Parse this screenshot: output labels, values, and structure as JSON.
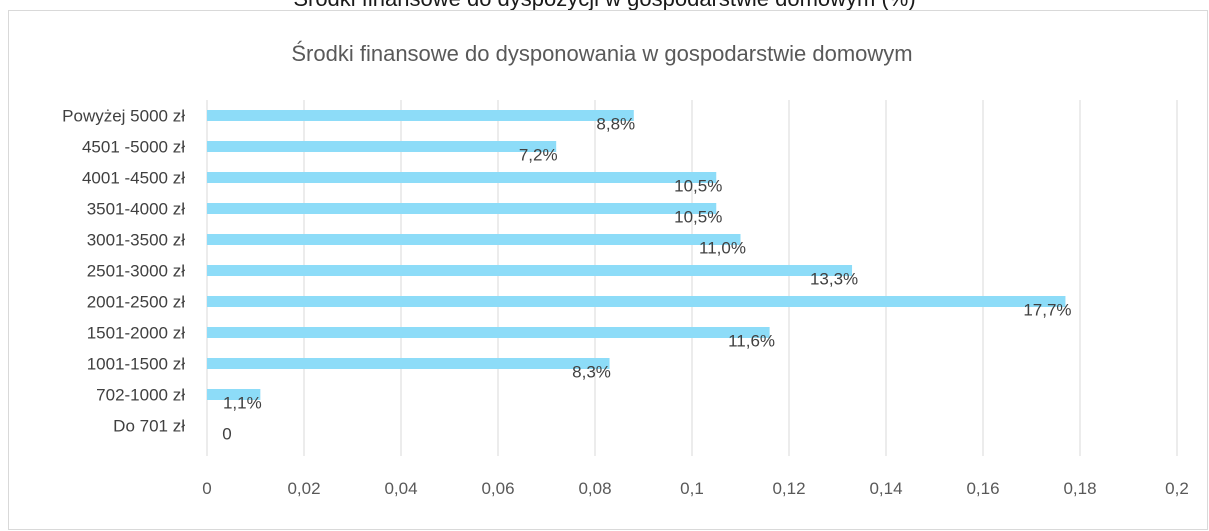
{
  "top_caption": "Środki finansowe do dyspozycji w gospodarstwie domowym (%)",
  "colors": {
    "bar": "#8ddcf8",
    "grid": "#d9d9d9"
  },
  "chart_data": {
    "type": "bar",
    "orientation": "horizontal",
    "title": "Środki finansowe do dysponowania w gospodarstwie domowym",
    "categories": [
      "Powyżej 5000 zł",
      "4501 -5000 zł",
      "4001 -4500 zł",
      "3501-4000 zł",
      "3001-3500 zł",
      "2501-3000 zł",
      "2001-2500 zł",
      "1501-2000 zł",
      "1001-1500 zł",
      "702-1000 zł",
      "Do 701 zł"
    ],
    "values": [
      0.088,
      0.072,
      0.105,
      0.105,
      0.11,
      0.133,
      0.177,
      0.116,
      0.083,
      0.011,
      0
    ],
    "data_labels": [
      "8,8%",
      "7,2%",
      "10,5%",
      "10,5%",
      "11,0%",
      "13,3%",
      "17,7%",
      "11,6%",
      "8,3%",
      "1,1%",
      "0"
    ],
    "xlim": [
      0,
      0.2
    ],
    "xticks": [
      "0",
      "0,02",
      "0,04",
      "0,06",
      "0,08",
      "0,1",
      "0,12",
      "0,14",
      "0,16",
      "0,18",
      "0,2"
    ],
    "xlabel": "",
    "ylabel": "",
    "grid": true,
    "legend": "none"
  }
}
